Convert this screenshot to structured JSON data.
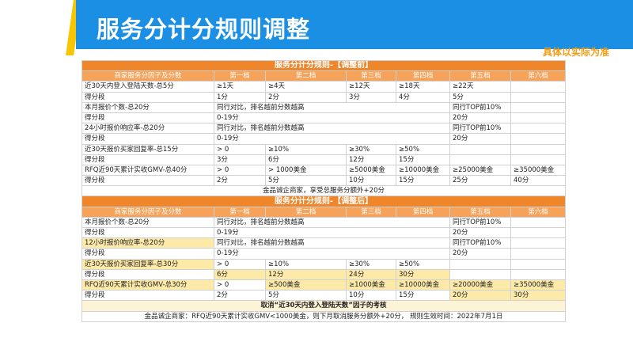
{
  "header": {
    "title": "服务分计分规则调整",
    "note": "具体以实际为准"
  },
  "tables": [
    {
      "title": "服务分计分规则-【调整前】",
      "columns": [
        "商家服务分因子及分数",
        "第一档",
        "第二档",
        "第三档",
        "第四档",
        "第五档",
        "第六档"
      ],
      "rows": [
        [
          "近30天内登入登陆天数-总5分",
          "≥1天",
          "≥4天",
          "≥12天",
          "≥18天",
          "≥22天"
        ],
        [
          "得分段",
          "1分",
          "2分",
          "3分",
          "4分",
          "5分"
        ],
        [
          "本月报价个数-总20分",
          "同行对比，排名越前分数越高",
          "同行TOP前10%"
        ],
        [
          "得分段",
          "0-19分",
          "20分"
        ],
        [
          "24小时报价响应率-总20分",
          "同行对比，排名越前分数越高",
          "同行TOP前10%"
        ],
        [
          "得分段",
          "0-19分",
          "20分"
        ],
        [
          "近30天报价买家回复率-总15分",
          "> 0",
          "≥10%",
          "≥30%",
          "≥50%"
        ],
        [
          "得分段",
          "3分",
          "6分",
          "12分",
          "15分"
        ],
        [
          "RFQ近90天累计实收GMV-总40分",
          "> 0",
          "> 1000美金",
          "≥5000美金",
          "≥10000美金",
          "≥25000美金",
          "≥35000美金"
        ],
        [
          "得分段",
          "2分",
          "5分",
          "10分",
          "15分",
          "25分",
          "40分"
        ]
      ],
      "footers": [
        "金品诚企商家，享受总服务分额外+20分"
      ]
    },
    {
      "title": "服务分计分规则-【调整后】",
      "columns": [
        "商家服务分因子及分数",
        "第一档",
        "第二档",
        "第三档",
        "第四档",
        "第五档",
        "第六档"
      ],
      "rows": [
        [
          "本月报价个数-总20分",
          "同行对比，排名越前分数越高",
          "同行TOP前10%"
        ],
        [
          "得分段",
          "0-19分",
          "20分"
        ],
        [
          "12小时报价响应率-总20分",
          "同行对比，排名越前分数越高",
          "同行TOP前10%"
        ],
        [
          "得分段",
          "0-19分",
          "20分"
        ],
        [
          "近30天报价买家回复率-总30分",
          "> 0",
          "≥10%",
          "≥30%",
          "≥50%"
        ],
        [
          "得分段",
          "6分",
          "12分",
          "24分",
          "30分"
        ],
        [
          "RFQ近90天累计实收GMV-总30分",
          "> 0",
          "≥500美金",
          "≥1000美金",
          "≥10000美金",
          "≥20000美金",
          "≥35000美金"
        ],
        [
          "得分段",
          "2分",
          "5分",
          "10分",
          "15分",
          "20分",
          "30分"
        ]
      ],
      "footers": [
        "取消“近30天内登入登陆天数”因子的考核",
        "金品诚企商家：RFQ近90天累计实收GMV<1000美金，则下月取消服务分额外+20分， 规则生效时间：2022年7月1日"
      ]
    }
  ]
}
